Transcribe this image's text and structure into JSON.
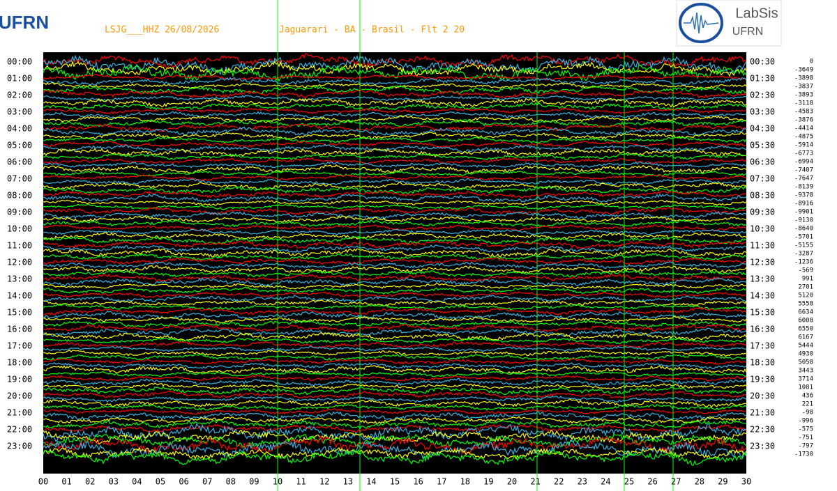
{
  "header": {
    "station": "LSJG___HHZ 26/08/2026",
    "location": "Jaguarari - BA - Brasil - Flt 2 20",
    "logo_left": "UFRN",
    "logo_right_title": "LabSis",
    "logo_right_subtitle": "UFRN"
  },
  "left_labels": [
    "00:00",
    "01:00",
    "02:00",
    "03:00",
    "04:00",
    "05:00",
    "06:00",
    "07:00",
    "08:00",
    "09:00",
    "10:00",
    "11:00",
    "12:00",
    "13:00",
    "14:00",
    "15:00",
    "16:00",
    "17:00",
    "18:00",
    "19:00",
    "20:00",
    "21:00",
    "22:00",
    "23:00"
  ],
  "right_labels": [
    "00:30",
    "01:30",
    "02:30",
    "03:30",
    "04:30",
    "05:30",
    "06:30",
    "07:30",
    "08:30",
    "09:30",
    "10:30",
    "11:30",
    "12:30",
    "13:30",
    "14:30",
    "15:30",
    "16:30",
    "17:30",
    "18:30",
    "19:30",
    "20:30",
    "21:30",
    "22:30",
    "23:30"
  ],
  "offsets": [
    0,
    -3649,
    -3898,
    -3837,
    -3893,
    -3118,
    -4583,
    -3876,
    -4414,
    -4875,
    -5914,
    -6773,
    -6994,
    -7407,
    -7647,
    -8139,
    -9378,
    -8916,
    -9901,
    -9130,
    -8640,
    -5701,
    -5155,
    -3287,
    -1236,
    -569,
    991,
    2701,
    5120,
    5558,
    6634,
    6008,
    6550,
    6167,
    5444,
    4930,
    5058,
    3443,
    3714,
    1081,
    436,
    221,
    -98,
    -996,
    -575,
    -751,
    -797,
    -1730
  ],
  "x_labels": [
    "00",
    "01",
    "02",
    "03",
    "04",
    "05",
    "06",
    "07",
    "08",
    "09",
    "10",
    "11",
    "12",
    "13",
    "14",
    "15",
    "16",
    "17",
    "18",
    "19",
    "20",
    "21",
    "22",
    "23",
    "24",
    "25",
    "26",
    "27",
    "28",
    "29",
    "30"
  ]
}
